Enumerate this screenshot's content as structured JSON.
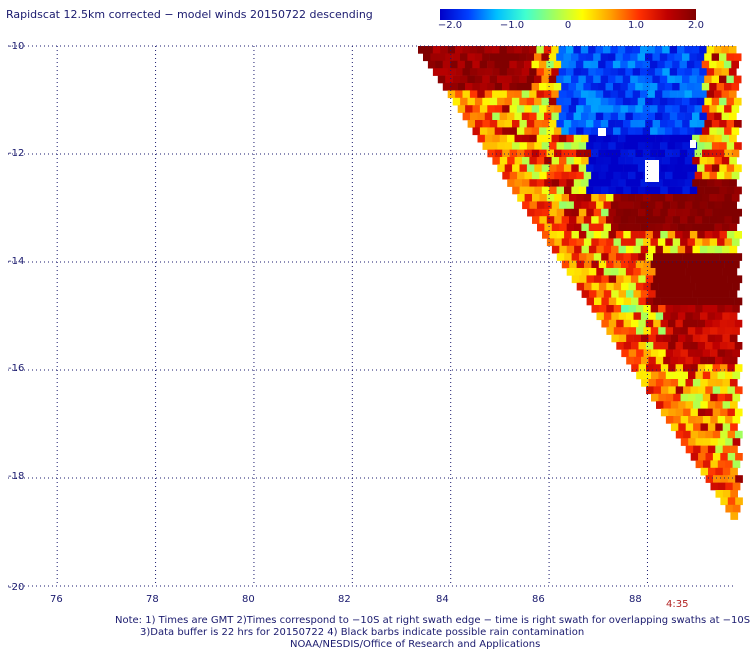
{
  "title": "Rapidscat 12.5km corrected − model winds 20150722 descending",
  "colorbar": {
    "ticks": [
      "−2.0",
      "−1.0",
      "0",
      "1.0",
      "2.0"
    ],
    "range": [
      -2.0,
      2.0
    ],
    "colors": [
      "#0000c8",
      "#0040ff",
      "#00c0ff",
      "#40ffd0",
      "#a0ff60",
      "#ffff00",
      "#ffa000",
      "#ff3000",
      "#c00000",
      "#800000"
    ]
  },
  "axes": {
    "lat_labels": [
      "-10",
      "-12",
      "-14",
      "-16",
      "-18",
      "-20"
    ],
    "lon_labels": [
      "76",
      "78",
      "80",
      "82",
      "84",
      "86",
      "88"
    ],
    "lat_range": [
      -20,
      -10
    ],
    "lon_range": [
      75,
      89.8
    ],
    "grid": true
  },
  "time_label": "4:35",
  "notes": {
    "line1": "Note: 1) Times are GMT 2)Times correspond to −10S at right swath edge − time is right swath for overlapping swaths at −10S",
    "line2": "3)Data buffer is 22 hrs for 20150722 4) Black barbs indicate possible rain contamination",
    "line3": "NOAA/NESDIS/Office of Research and Applications"
  }
}
